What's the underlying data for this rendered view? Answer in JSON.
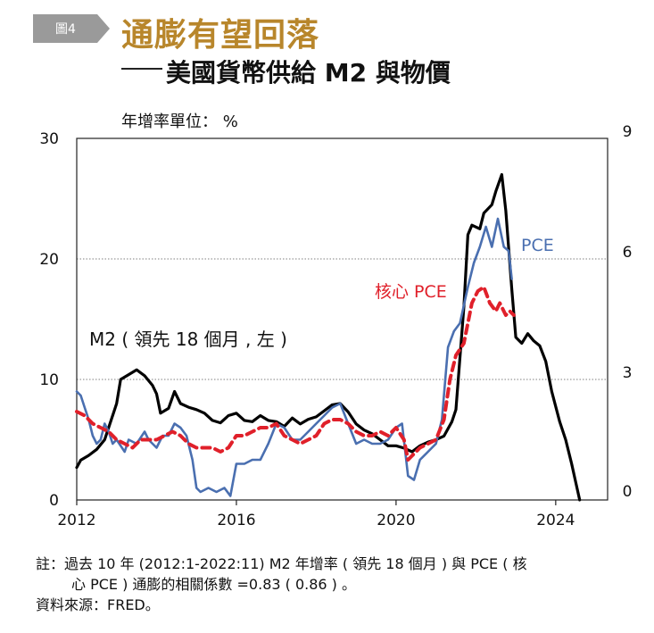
{
  "header": {
    "figure_label": "圖4",
    "title": "通膨有望回落",
    "subtitle": "美國貨幣供給 M2 與物價"
  },
  "chart_data": {
    "type": "line",
    "unit_label": "年增率單位： %",
    "x_ticks": [
      "2012",
      "2016",
      "2020",
      "2024"
    ],
    "xlim": [
      2012,
      2025.3
    ],
    "y_left": {
      "ticks": [
        "0",
        "10",
        "20",
        "30"
      ],
      "lim": [
        0,
        30
      ]
    },
    "y_right": {
      "ticks": [
        "0",
        "3",
        "6",
        "9"
      ],
      "lim": [
        0,
        9
      ]
    },
    "grid": "horizontal dotted at 10, 20",
    "series": [
      {
        "name": "M2 ( 領先 18 個月 , 左 )",
        "axis": "left",
        "color": "#000000",
        "style": "solid",
        "points": [
          [
            2012.0,
            2.7
          ],
          [
            2012.1,
            3.3
          ],
          [
            2012.3,
            3.7
          ],
          [
            2012.5,
            4.2
          ],
          [
            2012.7,
            5.0
          ],
          [
            2012.85,
            6.5
          ],
          [
            2013.0,
            8.0
          ],
          [
            2013.1,
            10.0
          ],
          [
            2013.3,
            10.4
          ],
          [
            2013.5,
            10.8
          ],
          [
            2013.7,
            10.3
          ],
          [
            2013.9,
            9.5
          ],
          [
            2014.0,
            8.8
          ],
          [
            2014.1,
            7.2
          ],
          [
            2014.3,
            7.6
          ],
          [
            2014.45,
            9.0
          ],
          [
            2014.6,
            8.0
          ],
          [
            2014.8,
            7.7
          ],
          [
            2015.0,
            7.5
          ],
          [
            2015.2,
            7.2
          ],
          [
            2015.4,
            6.6
          ],
          [
            2015.6,
            6.4
          ],
          [
            2015.8,
            7.0
          ],
          [
            2016.0,
            7.2
          ],
          [
            2016.2,
            6.6
          ],
          [
            2016.4,
            6.5
          ],
          [
            2016.6,
            7.0
          ],
          [
            2016.8,
            6.6
          ],
          [
            2017.0,
            6.5
          ],
          [
            2017.2,
            6.1
          ],
          [
            2017.4,
            6.8
          ],
          [
            2017.6,
            6.3
          ],
          [
            2017.8,
            6.7
          ],
          [
            2018.0,
            6.9
          ],
          [
            2018.2,
            7.4
          ],
          [
            2018.4,
            7.9
          ],
          [
            2018.6,
            8.0
          ],
          [
            2018.8,
            7.3
          ],
          [
            2019.0,
            6.3
          ],
          [
            2019.2,
            5.8
          ],
          [
            2019.4,
            5.5
          ],
          [
            2019.6,
            5.0
          ],
          [
            2019.8,
            4.5
          ],
          [
            2020.0,
            4.5
          ],
          [
            2020.2,
            4.3
          ],
          [
            2020.4,
            4.0
          ],
          [
            2020.6,
            4.5
          ],
          [
            2020.8,
            4.8
          ],
          [
            2021.0,
            5.0
          ],
          [
            2021.2,
            5.3
          ],
          [
            2021.4,
            6.5
          ],
          [
            2021.5,
            7.5
          ],
          [
            2021.7,
            16.0
          ],
          [
            2021.8,
            22.0
          ],
          [
            2021.9,
            22.8
          ],
          [
            2022.1,
            22.5
          ],
          [
            2022.2,
            23.8
          ],
          [
            2022.4,
            24.5
          ],
          [
            2022.5,
            25.6
          ],
          [
            2022.65,
            27.0
          ],
          [
            2022.75,
            24.0
          ],
          [
            2022.9,
            17.5
          ],
          [
            2023.0,
            13.5
          ],
          [
            2023.15,
            13.0
          ],
          [
            2023.3,
            13.8
          ],
          [
            2023.45,
            13.2
          ],
          [
            2023.6,
            12.8
          ],
          [
            2023.75,
            11.5
          ],
          [
            2023.9,
            9.0
          ],
          [
            2024.1,
            6.5
          ],
          [
            2024.25,
            5.0
          ],
          [
            2024.4,
            3.0
          ],
          [
            2024.5,
            1.5
          ],
          [
            2024.6,
            0.0
          ]
        ]
      },
      {
        "name": "PCE",
        "axis": "right",
        "color": "#4a6fb0",
        "style": "solid",
        "points": [
          [
            2012.0,
            2.7
          ],
          [
            2012.1,
            2.6
          ],
          [
            2012.2,
            2.3
          ],
          [
            2012.3,
            2.0
          ],
          [
            2012.4,
            1.6
          ],
          [
            2012.5,
            1.4
          ],
          [
            2012.6,
            1.5
          ],
          [
            2012.7,
            1.9
          ],
          [
            2012.8,
            1.7
          ],
          [
            2012.9,
            1.4
          ],
          [
            2013.0,
            1.5
          ],
          [
            2013.2,
            1.2
          ],
          [
            2013.3,
            1.5
          ],
          [
            2013.5,
            1.4
          ],
          [
            2013.7,
            1.7
          ],
          [
            2013.8,
            1.5
          ],
          [
            2014.0,
            1.3
          ],
          [
            2014.15,
            1.6
          ],
          [
            2014.3,
            1.6
          ],
          [
            2014.45,
            1.9
          ],
          [
            2014.6,
            1.8
          ],
          [
            2014.75,
            1.6
          ],
          [
            2014.9,
            1.0
          ],
          [
            2015.0,
            0.3
          ],
          [
            2015.1,
            0.2
          ],
          [
            2015.3,
            0.3
          ],
          [
            2015.5,
            0.2
          ],
          [
            2015.7,
            0.3
          ],
          [
            2015.85,
            0.1
          ],
          [
            2016.0,
            0.9
          ],
          [
            2016.2,
            0.9
          ],
          [
            2016.4,
            1.0
          ],
          [
            2016.6,
            1.0
          ],
          [
            2016.8,
            1.4
          ],
          [
            2017.0,
            1.9
          ],
          [
            2017.2,
            1.8
          ],
          [
            2017.4,
            1.5
          ],
          [
            2017.6,
            1.5
          ],
          [
            2017.8,
            1.7
          ],
          [
            2018.0,
            1.9
          ],
          [
            2018.2,
            2.1
          ],
          [
            2018.4,
            2.3
          ],
          [
            2018.6,
            2.4
          ],
          [
            2018.8,
            1.9
          ],
          [
            2019.0,
            1.4
          ],
          [
            2019.2,
            1.5
          ],
          [
            2019.4,
            1.4
          ],
          [
            2019.6,
            1.4
          ],
          [
            2019.8,
            1.5
          ],
          [
            2020.0,
            1.8
          ],
          [
            2020.15,
            1.9
          ],
          [
            2020.3,
            0.6
          ],
          [
            2020.45,
            0.5
          ],
          [
            2020.6,
            1.0
          ],
          [
            2020.8,
            1.2
          ],
          [
            2021.0,
            1.4
          ],
          [
            2021.15,
            2.0
          ],
          [
            2021.3,
            3.8
          ],
          [
            2021.45,
            4.2
          ],
          [
            2021.6,
            4.4
          ],
          [
            2021.8,
            5.3
          ],
          [
            2021.95,
            5.9
          ],
          [
            2022.1,
            6.3
          ],
          [
            2022.25,
            6.8
          ],
          [
            2022.4,
            6.3
          ],
          [
            2022.55,
            7.0
          ],
          [
            2022.7,
            6.3
          ],
          [
            2022.82,
            6.2
          ],
          [
            2022.9,
            5.5
          ]
        ]
      },
      {
        "name": "核心 PCE",
        "axis": "right",
        "color": "#e0202a",
        "style": "dashed",
        "points": [
          [
            2012.0,
            2.2
          ],
          [
            2012.2,
            2.1
          ],
          [
            2012.4,
            1.9
          ],
          [
            2012.6,
            1.8
          ],
          [
            2012.8,
            1.7
          ],
          [
            2013.0,
            1.5
          ],
          [
            2013.2,
            1.4
          ],
          [
            2013.4,
            1.3
          ],
          [
            2013.6,
            1.5
          ],
          [
            2013.8,
            1.5
          ],
          [
            2014.0,
            1.5
          ],
          [
            2014.2,
            1.6
          ],
          [
            2014.4,
            1.7
          ],
          [
            2014.6,
            1.6
          ],
          [
            2014.8,
            1.4
          ],
          [
            2015.0,
            1.3
          ],
          [
            2015.2,
            1.3
          ],
          [
            2015.4,
            1.3
          ],
          [
            2015.6,
            1.2
          ],
          [
            2015.8,
            1.3
          ],
          [
            2016.0,
            1.6
          ],
          [
            2016.2,
            1.6
          ],
          [
            2016.4,
            1.7
          ],
          [
            2016.6,
            1.8
          ],
          [
            2016.8,
            1.8
          ],
          [
            2017.0,
            1.9
          ],
          [
            2017.2,
            1.6
          ],
          [
            2017.4,
            1.5
          ],
          [
            2017.6,
            1.4
          ],
          [
            2017.8,
            1.5
          ],
          [
            2018.0,
            1.6
          ],
          [
            2018.2,
            1.9
          ],
          [
            2018.4,
            2.0
          ],
          [
            2018.6,
            2.0
          ],
          [
            2018.8,
            1.9
          ],
          [
            2019.0,
            1.7
          ],
          [
            2019.2,
            1.6
          ],
          [
            2019.4,
            1.6
          ],
          [
            2019.6,
            1.7
          ],
          [
            2019.8,
            1.6
          ],
          [
            2020.0,
            1.8
          ],
          [
            2020.2,
            1.5
          ],
          [
            2020.3,
            1.0
          ],
          [
            2020.4,
            1.1
          ],
          [
            2020.6,
            1.3
          ],
          [
            2020.8,
            1.4
          ],
          [
            2021.0,
            1.5
          ],
          [
            2021.2,
            2.0
          ],
          [
            2021.35,
            3.0
          ],
          [
            2021.5,
            3.6
          ],
          [
            2021.7,
            3.9
          ],
          [
            2021.9,
            4.9
          ],
          [
            2022.05,
            5.2
          ],
          [
            2022.2,
            5.3
          ],
          [
            2022.35,
            4.9
          ],
          [
            2022.5,
            4.7
          ],
          [
            2022.6,
            4.9
          ],
          [
            2022.75,
            4.6
          ],
          [
            2022.85,
            4.7
          ],
          [
            2022.95,
            4.6
          ]
        ]
      }
    ],
    "labels": {
      "m2": "M2 ( 領先 18 個月 , 左 )",
      "pce": "PCE",
      "core_pce": "核心 PCE"
    }
  },
  "footnote": {
    "line1": "註：過去 10 年 (2012:1-2022:11) M2 年增率 ( 領先 18 個月 ) 與 PCE ( 核",
    "line2": "心 PCE ) 通膨的相關係數 =0.83 ( 0.86 ) 。",
    "source": "資料來源：FRED。"
  }
}
